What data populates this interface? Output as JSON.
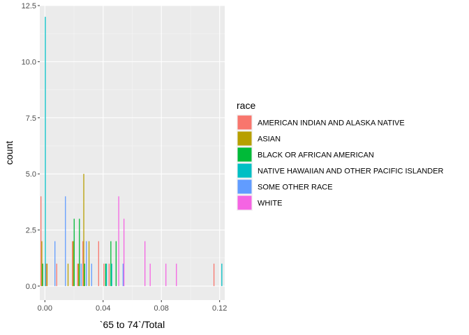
{
  "chart_data": {
    "type": "bar",
    "subtype": "histogram-dodged",
    "xlabel": "`65 to 74`/Total",
    "ylabel": "count",
    "xlim": [
      -0.0035,
      0.1235
    ],
    "ylim": [
      -0.625,
      12.5
    ],
    "x_ticks": [
      0.0,
      0.04,
      0.08,
      0.12
    ],
    "x_tick_labels": [
      "0.00",
      "0.04",
      "0.08",
      "0.12"
    ],
    "y_ticks": [
      0.0,
      2.5,
      5.0,
      7.5,
      10.0,
      12.5
    ],
    "y_tick_labels": [
      "0.0",
      "2.5",
      "5.0",
      "7.5",
      "10.0",
      "12.5"
    ],
    "grid": true,
    "bin_width": 0.0036,
    "legend": {
      "title": "race",
      "placement": "right",
      "entries": [
        {
          "label": "AMERICAN INDIAN AND ALASKA NATIVE",
          "color": "#F8766D"
        },
        {
          "label": "ASIAN",
          "color": "#B79F00"
        },
        {
          "label": "BLACK OR AFRICAN AMERICAN",
          "color": "#00BA38"
        },
        {
          "label": "NATIVE HAWAIIAN AND OTHER PACIFIC ISLANDER",
          "color": "#00BFC4"
        },
        {
          "label": "SOME OTHER RACE",
          "color": "#619CFF"
        },
        {
          "label": "WHITE",
          "color": "#F564E3"
        }
      ]
    },
    "series": [
      {
        "name": "AMERICAN INDIAN AND ALASKA NATIVE",
        "color": "#F8766D",
        "points": [
          [
            -0.0012,
            4
          ],
          [
            0.0024,
            1
          ],
          [
            0.0096,
            1
          ],
          [
            0.0204,
            2
          ],
          [
            0.024,
            1
          ],
          [
            0.0276,
            2
          ],
          [
            0.0384,
            2
          ],
          [
            0.042,
            1
          ],
          [
            0.0456,
            1
          ],
          [
            0.1176,
            1
          ]
        ]
      },
      {
        "name": "ASIAN",
        "color": "#B79F00",
        "points": [
          [
            -0.0012,
            2
          ],
          [
            0.0024,
            1
          ],
          [
            0.0168,
            1
          ],
          [
            0.0204,
            2
          ],
          [
            0.024,
            1
          ],
          [
            0.0276,
            5
          ],
          [
            0.0312,
            2
          ]
        ]
      },
      {
        "name": "BLACK OR AFRICAN AMERICAN",
        "color": "#00BA38",
        "points": [
          [
            -0.0012,
            1
          ],
          [
            0.0204,
            3
          ],
          [
            0.024,
            3
          ],
          [
            0.0276,
            1
          ],
          [
            0.042,
            1
          ],
          [
            0.0456,
            2
          ],
          [
            0.0492,
            2
          ]
        ]
      },
      {
        "name": "NATIVE HAWAIIAN AND OTHER PACIFIC ISLANDER",
        "color": "#00BFC4",
        "points": [
          [
            0.0,
            12
          ],
          [
            0.042,
            1
          ],
          [
            0.0456,
            1
          ],
          [
            0.1212,
            1
          ]
        ]
      },
      {
        "name": "SOME OTHER RACE",
        "color": "#619CFF",
        "points": [
          [
            0.006,
            2
          ],
          [
            0.0132,
            4
          ],
          [
            0.024,
            1
          ],
          [
            0.0276,
            2
          ],
          [
            0.0312,
            1
          ],
          [
            0.0528,
            1
          ]
        ]
      },
      {
        "name": "WHITE",
        "color": "#F564E3",
        "points": [
          [
            0.0492,
            4
          ],
          [
            0.0528,
            3
          ],
          [
            0.0672,
            2
          ],
          [
            0.0708,
            1
          ],
          [
            0.0816,
            1
          ],
          [
            0.0888,
            1
          ]
        ]
      }
    ]
  }
}
